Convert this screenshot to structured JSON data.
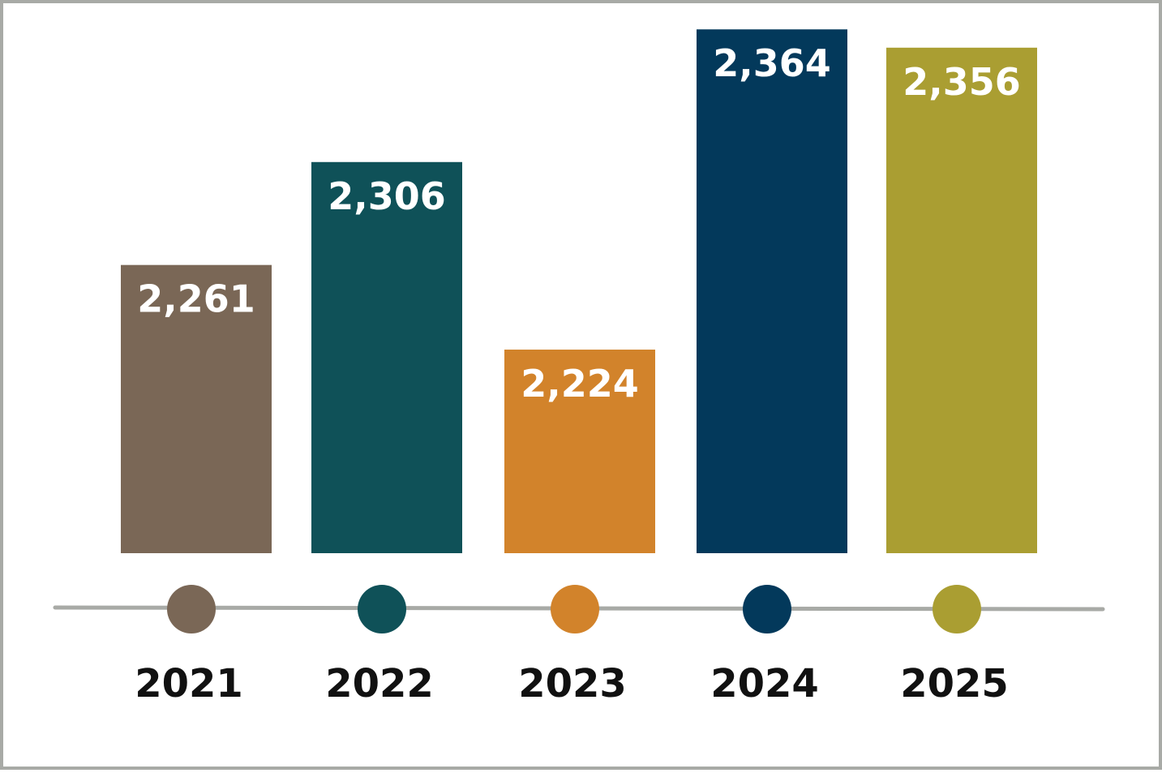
{
  "chart_data": {
    "type": "bar",
    "categories": [
      "2021",
      "2022",
      "2023",
      "2024",
      "2025"
    ],
    "values": [
      2261,
      2306,
      2224,
      2364,
      2356
    ],
    "value_labels": [
      "2,261",
      "2,306",
      "2,224",
      "2,364",
      "2,356"
    ],
    "colors": [
      "#7a6756",
      "#0f5158",
      "#d2832b",
      "#03395b",
      "#aa9e32"
    ],
    "timeline_color": "#a8aaa6",
    "title": "",
    "xlabel": "",
    "ylabel": "",
    "grid": false,
    "legend": "none"
  }
}
